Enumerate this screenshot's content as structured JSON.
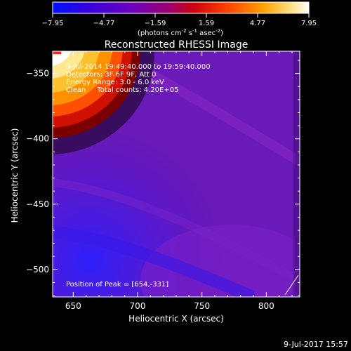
{
  "chart_data": {
    "type": "heatmap",
    "title": "Reconstructed RHESSI Image",
    "xlabel": "Heliocentric X (arcsec)",
    "ylabel": "Heliocentric Y (arcsec)",
    "xlim": [
      634,
      826
    ],
    "ylim": [
      -521,
      -333
    ],
    "x_ticks": [
      650,
      700,
      750,
      800
    ],
    "y_ticks": [
      -350,
      -400,
      -450,
      -500
    ],
    "colorbar": {
      "ticks": [
        "-7.95",
        "-4.77",
        "-1.59",
        "1.59",
        "4.77",
        "7.95"
      ],
      "unit_parts": [
        "(photons cm",
        "-2",
        " s",
        "-1",
        " asec",
        "-2",
        ")"
      ],
      "colors": [
        "#0010ff",
        "#4a00d0",
        "#8000b8",
        "#c0003a",
        "#ff3000",
        "#ff9000",
        "#ffe080",
        "#ffffff"
      ]
    },
    "info_lines": [
      "9-Jul-2014 19:49:40.000 to 19:59:40.000",
      "Detectors: 3F 6F 9F, Att 0",
      "Energy Range: 3.0 - 6.0 keV",
      "Clean     Total counts: 4.20E+05"
    ],
    "peak_label": "Position of Peak = [654,-331]",
    "peak": [
      654,
      -331
    ],
    "timestamp": "9-Jul-2017 15:57"
  }
}
